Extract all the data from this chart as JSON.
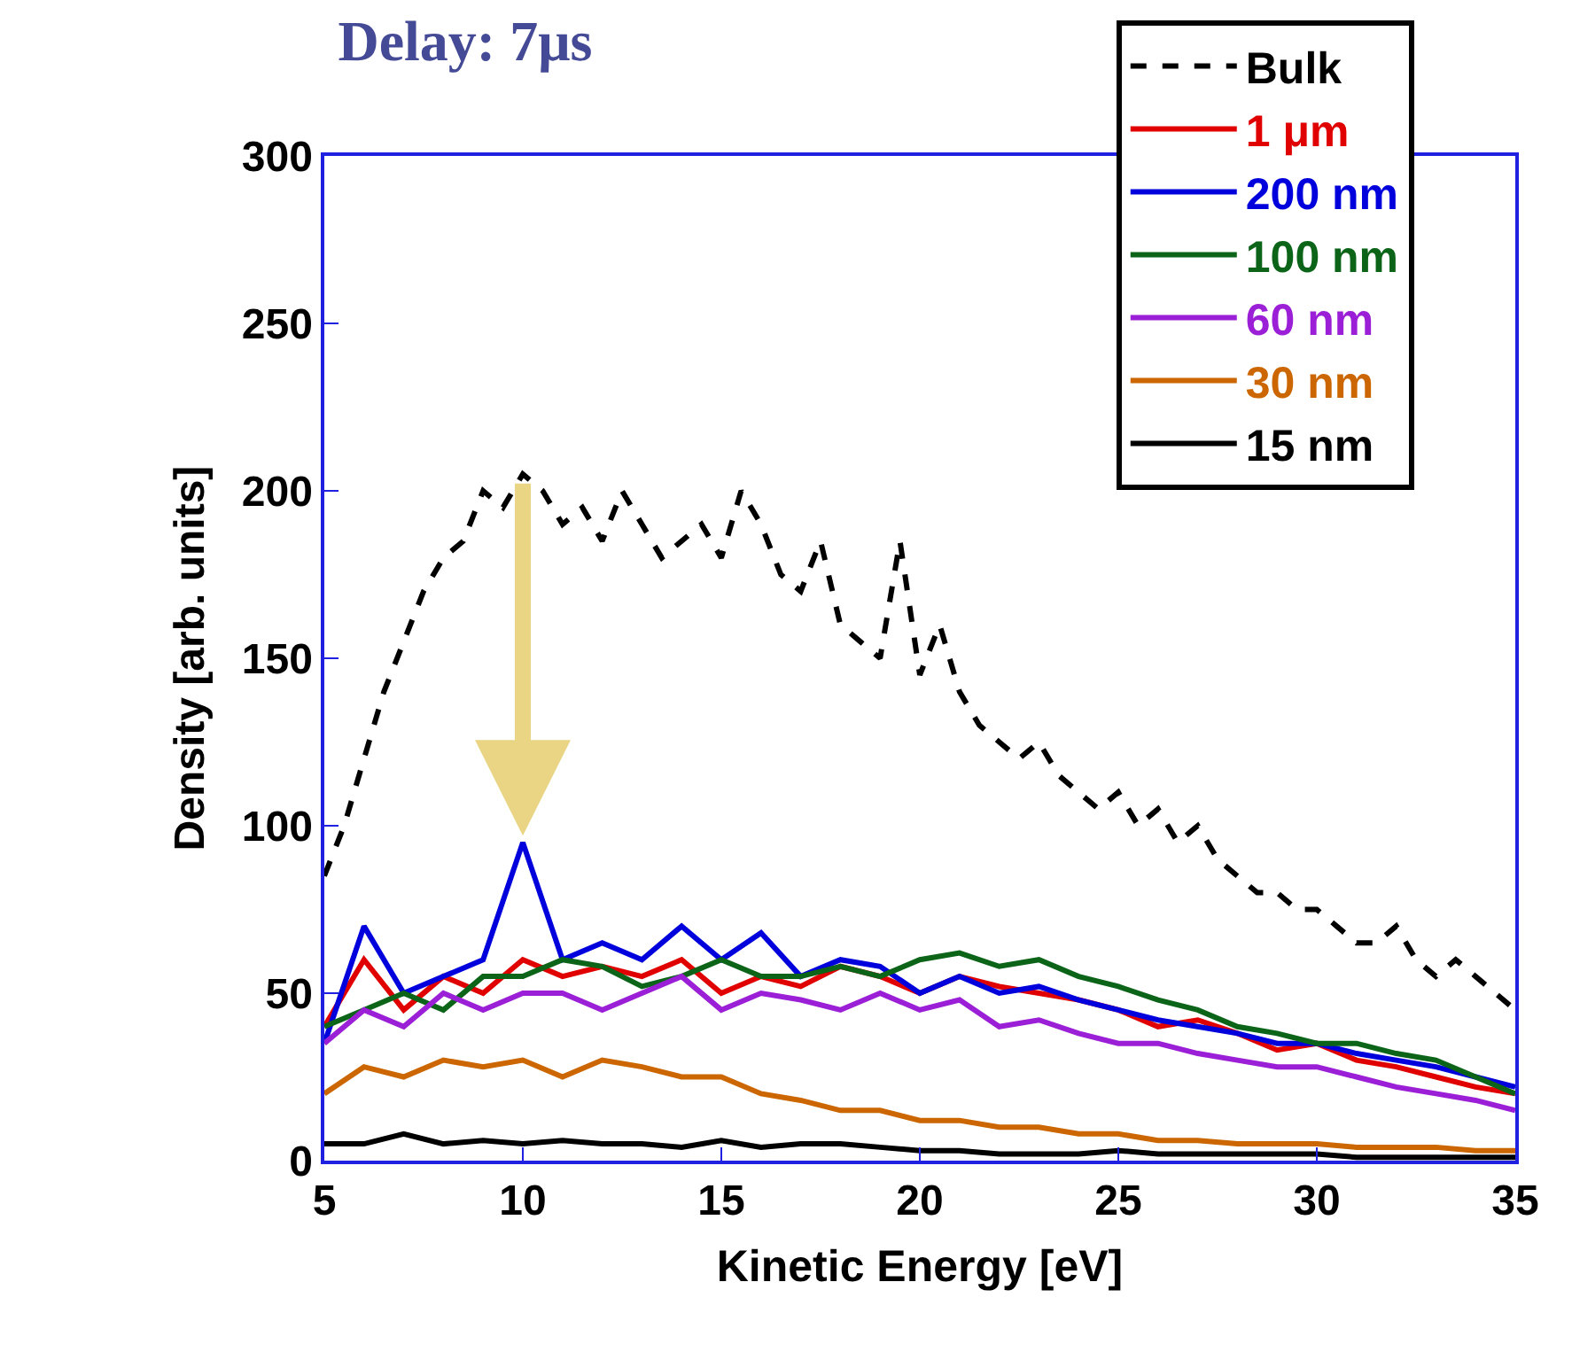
{
  "chart_data": {
    "type": "line",
    "title": "Delay: 7μs",
    "xlabel": "Kinetic Energy [eV]",
    "ylabel": "Density [arb. units]",
    "xlim": [
      5,
      35
    ],
    "xticks": [
      5,
      10,
      15,
      20,
      25,
      30,
      35
    ],
    "ylim": [
      0,
      300
    ],
    "yticks": [
      0,
      50,
      100,
      150,
      200,
      250,
      300
    ],
    "grid": false,
    "legend": "top right",
    "marker": "none",
    "x": [
      5,
      6,
      7,
      8,
      9,
      10,
      11,
      12,
      13,
      14,
      15,
      16,
      17,
      18,
      19,
      20,
      21,
      22,
      23,
      24,
      25,
      26,
      27,
      28,
      29,
      30,
      31,
      32,
      33,
      34,
      35
    ],
    "series": [
      {
        "name": "Bulk",
        "color": "#000000",
        "line_style": "dashed",
        "x": [
          5,
          5.5,
          6,
          6.5,
          7,
          7.5,
          8,
          8.5,
          9,
          9.5,
          10,
          10.5,
          11,
          11.5,
          12,
          12.5,
          13,
          13.5,
          14,
          14.5,
          15,
          15.5,
          16,
          16.5,
          17,
          17.5,
          18,
          18.5,
          19,
          19.5,
          20,
          20.5,
          21,
          21.5,
          22,
          22.5,
          23,
          23.5,
          24,
          24.5,
          25,
          25.5,
          26,
          26.5,
          27,
          27.5,
          28,
          28.5,
          29,
          29.5,
          30,
          30.5,
          31,
          31.5,
          32,
          32.5,
          33,
          33.5,
          34,
          34.5,
          35
        ],
        "values": [
          85,
          100,
          120,
          140,
          155,
          170,
          180,
          185,
          200,
          195,
          205,
          200,
          190,
          195,
          185,
          200,
          190,
          180,
          185,
          190,
          180,
          200,
          190,
          175,
          170,
          185,
          160,
          155,
          150,
          185,
          145,
          160,
          140,
          130,
          125,
          120,
          125,
          115,
          110,
          105,
          110,
          100,
          105,
          95,
          100,
          90,
          85,
          80,
          80,
          75,
          75,
          70,
          65,
          65,
          70,
          60,
          55,
          60,
          55,
          50,
          45
        ]
      },
      {
        "name": "1 μm",
        "color": "#e00000",
        "values": [
          40,
          60,
          45,
          55,
          50,
          60,
          55,
          58,
          55,
          60,
          50,
          55,
          52,
          58,
          55,
          50,
          55,
          52,
          50,
          48,
          45,
          40,
          42,
          38,
          33,
          35,
          30,
          28,
          25,
          22,
          20
        ]
      },
      {
        "name": "200 nm",
        "color": "#0000dd",
        "values": [
          35,
          70,
          50,
          55,
          60,
          95,
          60,
          65,
          60,
          70,
          60,
          68,
          55,
          60,
          58,
          50,
          55,
          50,
          52,
          48,
          45,
          42,
          40,
          38,
          35,
          35,
          32,
          30,
          28,
          25,
          22
        ]
      },
      {
        "name": "100 nm",
        "color": "#0b6418",
        "values": [
          40,
          45,
          50,
          45,
          55,
          55,
          60,
          58,
          52,
          55,
          60,
          55,
          55,
          58,
          55,
          60,
          62,
          58,
          60,
          55,
          52,
          48,
          45,
          40,
          38,
          35,
          35,
          32,
          30,
          25,
          20
        ]
      },
      {
        "name": "60 nm",
        "color": "#9b1fd6",
        "values": [
          35,
          45,
          40,
          50,
          45,
          50,
          50,
          45,
          50,
          55,
          45,
          50,
          48,
          45,
          50,
          45,
          48,
          40,
          42,
          38,
          35,
          35,
          32,
          30,
          28,
          28,
          25,
          22,
          20,
          18,
          15
        ]
      },
      {
        "name": "30 nm",
        "color": "#cc6600",
        "values": [
          20,
          28,
          25,
          30,
          28,
          30,
          25,
          30,
          28,
          25,
          25,
          20,
          18,
          15,
          15,
          12,
          12,
          10,
          10,
          8,
          8,
          6,
          6,
          5,
          5,
          5,
          4,
          4,
          4,
          3,
          3
        ]
      },
      {
        "name": "15 nm",
        "color": "#000000",
        "values": [
          5,
          5,
          8,
          5,
          6,
          5,
          6,
          5,
          5,
          4,
          6,
          4,
          5,
          5,
          4,
          3,
          3,
          2,
          2,
          2,
          3,
          2,
          2,
          2,
          2,
          2,
          1,
          1,
          1,
          1,
          1
        ]
      }
    ]
  }
}
